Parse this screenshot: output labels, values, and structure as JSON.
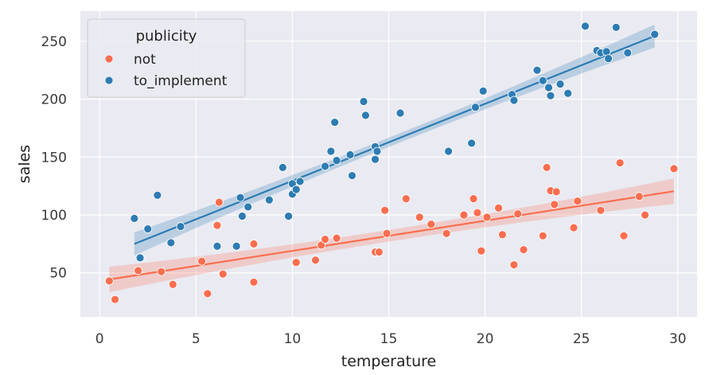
{
  "chart_data": {
    "type": "scatter",
    "xlabel": "temperature",
    "ylabel": "sales",
    "xlim": [
      -1,
      31
    ],
    "ylim": [
      12,
      276
    ],
    "xticks": [
      0,
      5,
      10,
      15,
      20,
      25,
      30
    ],
    "yticks": [
      50,
      100,
      150,
      200,
      250
    ],
    "grid": true,
    "legend": {
      "title": "publicity",
      "placement": "top-left"
    },
    "series": [
      {
        "name": "not",
        "color": "#fa6e4f",
        "regression": {
          "intercept": 43,
          "slope": 2.6,
          "ci_halfwidth_ends": 11,
          "ci_halfwidth_mid": 5
        },
        "points": [
          [
            0.5,
            43
          ],
          [
            0.8,
            27
          ],
          [
            2,
            52
          ],
          [
            3.2,
            51
          ],
          [
            3.8,
            40
          ],
          [
            5.3,
            60
          ],
          [
            5.6,
            32
          ],
          [
            6.1,
            91
          ],
          [
            6.2,
            111
          ],
          [
            6.4,
            49
          ],
          [
            8,
            75
          ],
          [
            8,
            42
          ],
          [
            10.2,
            59
          ],
          [
            11.2,
            61
          ],
          [
            11.5,
            74
          ],
          [
            11.7,
            79
          ],
          [
            12.3,
            80
          ],
          [
            14.3,
            68
          ],
          [
            14.5,
            68
          ],
          [
            14.8,
            104
          ],
          [
            14.9,
            84
          ],
          [
            15.9,
            114
          ],
          [
            16.6,
            98
          ],
          [
            17.2,
            92
          ],
          [
            18,
            84
          ],
          [
            18.9,
            100
          ],
          [
            19.4,
            114
          ],
          [
            19.6,
            102
          ],
          [
            19.8,
            69
          ],
          [
            20.1,
            98
          ],
          [
            20.7,
            106
          ],
          [
            20.9,
            83
          ],
          [
            21.5,
            57
          ],
          [
            21.7,
            101
          ],
          [
            22,
            70
          ],
          [
            23,
            82
          ],
          [
            23.2,
            141
          ],
          [
            23.4,
            121
          ],
          [
            23.6,
            109
          ],
          [
            23.7,
            120
          ],
          [
            24.6,
            89
          ],
          [
            24.8,
            112
          ],
          [
            26,
            104
          ],
          [
            27,
            145
          ],
          [
            27.2,
            82
          ],
          [
            28,
            116
          ],
          [
            28.3,
            100
          ],
          [
            29.8,
            140
          ]
        ]
      },
      {
        "name": "to_implement",
        "color": "#2d7cb3",
        "regression": {
          "intercept": 63,
          "slope": 6.65,
          "ci_halfwidth_ends": 10,
          "ci_halfwidth_mid": 4
        },
        "points": [
          [
            1.8,
            97
          ],
          [
            2.1,
            63
          ],
          [
            2.5,
            88
          ],
          [
            3,
            117
          ],
          [
            3.7,
            76
          ],
          [
            4.2,
            90
          ],
          [
            6.1,
            73
          ],
          [
            7.1,
            73
          ],
          [
            7.3,
            115
          ],
          [
            7.4,
            99
          ],
          [
            7.7,
            107
          ],
          [
            8.8,
            113
          ],
          [
            9.5,
            141
          ],
          [
            9.8,
            99
          ],
          [
            10,
            118
          ],
          [
            10,
            127
          ],
          [
            10.2,
            122
          ],
          [
            10.4,
            129
          ],
          [
            11.7,
            142
          ],
          [
            12,
            155
          ],
          [
            12.2,
            180
          ],
          [
            12.3,
            147
          ],
          [
            13,
            152
          ],
          [
            13.1,
            134
          ],
          [
            13.7,
            198
          ],
          [
            13.8,
            186
          ],
          [
            14.3,
            148
          ],
          [
            14.3,
            159
          ],
          [
            14.4,
            155
          ],
          [
            15.6,
            188
          ],
          [
            18.1,
            155
          ],
          [
            19.3,
            162
          ],
          [
            19.5,
            193
          ],
          [
            19.9,
            207
          ],
          [
            21.4,
            204
          ],
          [
            21.5,
            199
          ],
          [
            22.7,
            225
          ],
          [
            23,
            216
          ],
          [
            23.3,
            210
          ],
          [
            23.4,
            203
          ],
          [
            23.9,
            213
          ],
          [
            24.3,
            205
          ],
          [
            25.2,
            263
          ],
          [
            25.8,
            242
          ],
          [
            26,
            240
          ],
          [
            26.3,
            241
          ],
          [
            26.4,
            235
          ],
          [
            26.8,
            262
          ],
          [
            27.4,
            240
          ],
          [
            28.8,
            256
          ]
        ]
      }
    ]
  }
}
